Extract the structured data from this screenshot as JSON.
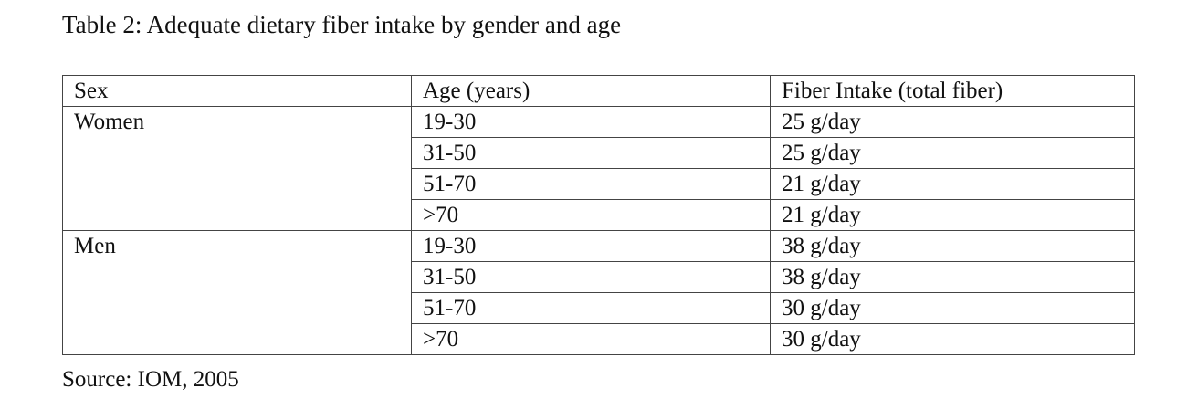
{
  "title": "Table 2: Adequate dietary fiber intake by gender and age",
  "table": {
    "header": [
      "Sex",
      "Age (years)",
      "Fiber Intake (total fiber)"
    ],
    "groups": [
      {
        "sex": "Women",
        "rows": [
          [
            "19-30",
            "25 g/day"
          ],
          [
            "31-50",
            "25 g/day"
          ],
          [
            "51-70",
            "21 g/day"
          ],
          [
            ">70",
            "21 g/day"
          ]
        ]
      },
      {
        "sex": "Men",
        "rows": [
          [
            "19-30",
            "38 g/day"
          ],
          [
            "31-50",
            "38 g/day"
          ],
          [
            "51-70",
            "30 g/day"
          ],
          [
            ">70",
            "30 g/day"
          ]
        ]
      }
    ]
  },
  "source": "Source: IOM, 2005"
}
